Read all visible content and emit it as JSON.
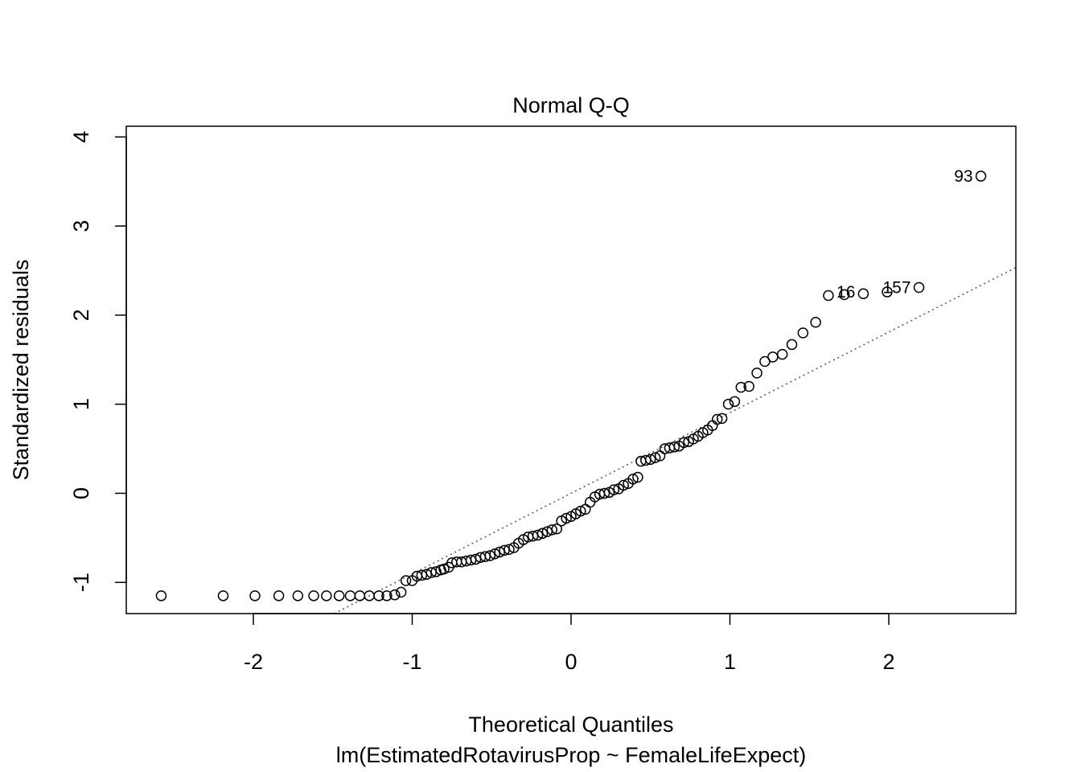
{
  "chart_data": {
    "type": "scatter",
    "title": "Normal Q-Q",
    "xlabel": "Theoretical Quantiles",
    "subtitle": "lm(EstimatedRotavirusProp ~ FemaleLifeExpect)",
    "ylabel": "Standardized residuals",
    "xlim": [
      -2.8,
      2.8
    ],
    "ylim": [
      -1.35,
      4.12
    ],
    "x_ticks": [
      -2,
      -1,
      0,
      1,
      2
    ],
    "x_tick_labels": [
      "-2",
      "-1",
      "0",
      "1",
      "2"
    ],
    "y_ticks": [
      -1,
      0,
      1,
      2,
      3,
      4
    ],
    "y_tick_labels": [
      "-1",
      "0",
      "1",
      "2",
      "3",
      "4"
    ],
    "reference_line": {
      "style": "dotted",
      "color": "#555555",
      "intercept": 0.0,
      "slope": 0.905
    },
    "point_labels": [
      {
        "text": "93",
        "x": 2.58,
        "y": 3.56
      },
      {
        "text": "16",
        "x": 1.84,
        "y": 2.26
      },
      {
        "text": "157",
        "x": 2.19,
        "y": 2.31
      }
    ],
    "points": [
      {
        "x": -2.58,
        "y": -1.15
      },
      {
        "x": -2.19,
        "y": -1.15
      },
      {
        "x": -1.99,
        "y": -1.15
      },
      {
        "x": -1.84,
        "y": -1.15
      },
      {
        "x": -1.72,
        "y": -1.15
      },
      {
        "x": -1.62,
        "y": -1.15
      },
      {
        "x": -1.54,
        "y": -1.15
      },
      {
        "x": -1.46,
        "y": -1.15
      },
      {
        "x": -1.39,
        "y": -1.15
      },
      {
        "x": -1.33,
        "y": -1.15
      },
      {
        "x": -1.27,
        "y": -1.15
      },
      {
        "x": -1.21,
        "y": -1.15
      },
      {
        "x": -1.16,
        "y": -1.15
      },
      {
        "x": -1.11,
        "y": -1.14
      },
      {
        "x": -1.07,
        "y": -1.11
      },
      {
        "x": -1.04,
        "y": -0.98
      },
      {
        "x": -1.0,
        "y": -0.98
      },
      {
        "x": -0.97,
        "y": -0.93
      },
      {
        "x": -0.94,
        "y": -0.92
      },
      {
        "x": -0.91,
        "y": -0.91
      },
      {
        "x": -0.88,
        "y": -0.89
      },
      {
        "x": -0.85,
        "y": -0.88
      },
      {
        "x": -0.82,
        "y": -0.86
      },
      {
        "x": -0.8,
        "y": -0.85
      },
      {
        "x": -0.77,
        "y": -0.83
      },
      {
        "x": -0.75,
        "y": -0.78
      },
      {
        "x": -0.72,
        "y": -0.77
      },
      {
        "x": -0.69,
        "y": -0.77
      },
      {
        "x": -0.66,
        "y": -0.76
      },
      {
        "x": -0.63,
        "y": -0.75
      },
      {
        "x": -0.6,
        "y": -0.74
      },
      {
        "x": -0.57,
        "y": -0.72
      },
      {
        "x": -0.54,
        "y": -0.71
      },
      {
        "x": -0.51,
        "y": -0.7
      },
      {
        "x": -0.48,
        "y": -0.68
      },
      {
        "x": -0.45,
        "y": -0.66
      },
      {
        "x": -0.42,
        "y": -0.64
      },
      {
        "x": -0.39,
        "y": -0.63
      },
      {
        "x": -0.36,
        "y": -0.61
      },
      {
        "x": -0.33,
        "y": -0.56
      },
      {
        "x": -0.3,
        "y": -0.52
      },
      {
        "x": -0.27,
        "y": -0.49
      },
      {
        "x": -0.24,
        "y": -0.48
      },
      {
        "x": -0.21,
        "y": -0.47
      },
      {
        "x": -0.18,
        "y": -0.45
      },
      {
        "x": -0.15,
        "y": -0.43
      },
      {
        "x": -0.12,
        "y": -0.41
      },
      {
        "x": -0.09,
        "y": -0.4
      },
      {
        "x": -0.06,
        "y": -0.31
      },
      {
        "x": -0.03,
        "y": -0.28
      },
      {
        "x": 0.0,
        "y": -0.26
      },
      {
        "x": 0.03,
        "y": -0.23
      },
      {
        "x": 0.06,
        "y": -0.2
      },
      {
        "x": 0.09,
        "y": -0.18
      },
      {
        "x": 0.12,
        "y": -0.1
      },
      {
        "x": 0.15,
        "y": -0.04
      },
      {
        "x": 0.18,
        "y": -0.01
      },
      {
        "x": 0.21,
        "y": 0.0
      },
      {
        "x": 0.24,
        "y": 0.01
      },
      {
        "x": 0.27,
        "y": 0.04
      },
      {
        "x": 0.3,
        "y": 0.05
      },
      {
        "x": 0.33,
        "y": 0.09
      },
      {
        "x": 0.36,
        "y": 0.11
      },
      {
        "x": 0.39,
        "y": 0.16
      },
      {
        "x": 0.42,
        "y": 0.18
      },
      {
        "x": 0.44,
        "y": 0.36
      },
      {
        "x": 0.47,
        "y": 0.37
      },
      {
        "x": 0.5,
        "y": 0.38
      },
      {
        "x": 0.53,
        "y": 0.4
      },
      {
        "x": 0.56,
        "y": 0.42
      },
      {
        "x": 0.59,
        "y": 0.5
      },
      {
        "x": 0.62,
        "y": 0.51
      },
      {
        "x": 0.65,
        "y": 0.52
      },
      {
        "x": 0.68,
        "y": 0.53
      },
      {
        "x": 0.71,
        "y": 0.57
      },
      {
        "x": 0.74,
        "y": 0.58
      },
      {
        "x": 0.77,
        "y": 0.61
      },
      {
        "x": 0.8,
        "y": 0.64
      },
      {
        "x": 0.83,
        "y": 0.68
      },
      {
        "x": 0.86,
        "y": 0.71
      },
      {
        "x": 0.89,
        "y": 0.76
      },
      {
        "x": 0.92,
        "y": 0.83
      },
      {
        "x": 0.95,
        "y": 0.84
      },
      {
        "x": 0.99,
        "y": 1.0
      },
      {
        "x": 1.03,
        "y": 1.03
      },
      {
        "x": 1.07,
        "y": 1.19
      },
      {
        "x": 1.12,
        "y": 1.2
      },
      {
        "x": 1.17,
        "y": 1.35
      },
      {
        "x": 1.22,
        "y": 1.48
      },
      {
        "x": 1.27,
        "y": 1.53
      },
      {
        "x": 1.33,
        "y": 1.56
      },
      {
        "x": 1.39,
        "y": 1.67
      },
      {
        "x": 1.46,
        "y": 1.8
      },
      {
        "x": 1.54,
        "y": 1.92
      },
      {
        "x": 1.62,
        "y": 2.22
      },
      {
        "x": 1.72,
        "y": 2.23
      },
      {
        "x": 1.84,
        "y": 2.24
      },
      {
        "x": 1.99,
        "y": 2.26
      },
      {
        "x": 2.19,
        "y": 2.31
      },
      {
        "x": 2.58,
        "y": 3.56
      }
    ]
  }
}
